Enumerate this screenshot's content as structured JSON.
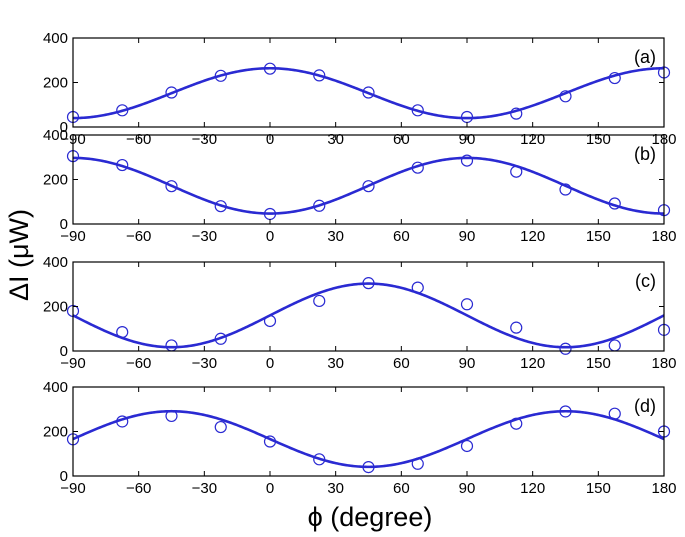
{
  "figure": {
    "xlabel": "ϕ (degree)",
    "ylabel": "ΔI (μW)"
  },
  "style": {
    "series_color": "#2a2ad2",
    "axis_color": "#000000"
  },
  "chart_data": [
    {
      "type": "scatter",
      "panel_label": "(a)",
      "xlim": [
        -90,
        180
      ],
      "ylim": [
        0,
        400
      ],
      "xticks": [
        -90,
        -60,
        -30,
        0,
        30,
        60,
        90,
        120,
        150,
        180
      ],
      "xtick_labels": [
        "−90",
        "−60",
        "−30",
        "0",
        "30",
        "60",
        "90",
        "120",
        "150",
        "180"
      ],
      "yticks": [
        0,
        200,
        400
      ],
      "ytick_labels": [
        "0",
        "200",
        "400"
      ],
      "grid": false,
      "series": [
        {
          "kind": "markers",
          "marker": "circle-open",
          "x": [
            -90,
            -67.5,
            -45,
            -22.5,
            0,
            22.5,
            45,
            67.5,
            90,
            112.5,
            135,
            157.5,
            180
          ],
          "y": [
            45,
            75,
            155,
            230,
            262,
            232,
            155,
            75,
            45,
            60,
            138,
            220,
            245
          ]
        },
        {
          "kind": "fit-curve",
          "mean": 152,
          "amplitude": 112,
          "period": 180,
          "phase_deg": 0
        }
      ]
    },
    {
      "type": "scatter",
      "panel_label": "(b)",
      "xlim": [
        -90,
        180
      ],
      "ylim": [
        0,
        400
      ],
      "xticks": [
        -90,
        -60,
        -30,
        0,
        30,
        60,
        90,
        120,
        150,
        180
      ],
      "xtick_labels": [
        "−90",
        "−60",
        "−30",
        "0",
        "30",
        "60",
        "90",
        "120",
        "150",
        "180"
      ],
      "yticks": [
        0,
        200,
        400
      ],
      "ytick_labels": [
        "0",
        "200",
        "400"
      ],
      "grid": false,
      "series": [
        {
          "kind": "markers",
          "marker": "circle-open",
          "x": [
            -90,
            -67.5,
            -45,
            -22.5,
            0,
            22.5,
            45,
            67.5,
            90,
            112.5,
            135,
            157.5,
            180
          ],
          "y": [
            305,
            265,
            170,
            80,
            45,
            82,
            170,
            253,
            285,
            235,
            155,
            92,
            62
          ]
        },
        {
          "kind": "fit-curve",
          "mean": 172,
          "amplitude": 125,
          "period": 180,
          "phase_deg": 90
        }
      ]
    },
    {
      "type": "scatter",
      "panel_label": "(c)",
      "xlim": [
        -90,
        180
      ],
      "ylim": [
        0,
        400
      ],
      "xticks": [
        -90,
        -60,
        -30,
        0,
        30,
        60,
        90,
        120,
        150,
        180
      ],
      "xtick_labels": [
        "−90",
        "−60",
        "−30",
        "0",
        "30",
        "60",
        "90",
        "120",
        "150",
        "180"
      ],
      "yticks": [
        0,
        200,
        400
      ],
      "ytick_labels": [
        "0",
        "200",
        "400"
      ],
      "grid": false,
      "series": [
        {
          "kind": "markers",
          "marker": "circle-open",
          "x": [
            -90,
            -67.5,
            -45,
            -22.5,
            0,
            22.5,
            45,
            67.5,
            90,
            112.5,
            135,
            157.5,
            180
          ],
          "y": [
            180,
            85,
            25,
            55,
            135,
            225,
            305,
            285,
            210,
            105,
            10,
            25,
            95
          ]
        },
        {
          "kind": "fit-curve",
          "mean": 160,
          "amplitude": 143,
          "period": 180,
          "phase_deg": 45
        }
      ]
    },
    {
      "type": "scatter",
      "panel_label": "(d)",
      "xlim": [
        -90,
        180
      ],
      "ylim": [
        0,
        400
      ],
      "xticks": [
        -90,
        -60,
        -30,
        0,
        30,
        60,
        90,
        120,
        150,
        180
      ],
      "xtick_labels": [
        "−90",
        "−60",
        "−30",
        "0",
        "30",
        "60",
        "90",
        "120",
        "150",
        "180"
      ],
      "yticks": [
        0,
        200,
        400
      ],
      "ytick_labels": [
        "0",
        "200",
        "400"
      ],
      "grid": false,
      "series": [
        {
          "kind": "markers",
          "marker": "circle-open",
          "x": [
            -90,
            -67.5,
            -45,
            -22.5,
            0,
            22.5,
            45,
            67.5,
            90,
            112.5,
            135,
            157.5,
            180
          ],
          "y": [
            165,
            245,
            270,
            220,
            155,
            75,
            40,
            55,
            135,
            235,
            290,
            280,
            200
          ]
        },
        {
          "kind": "fit-curve",
          "mean": 166,
          "amplitude": 125,
          "period": 180,
          "phase_deg": -45
        }
      ]
    }
  ]
}
